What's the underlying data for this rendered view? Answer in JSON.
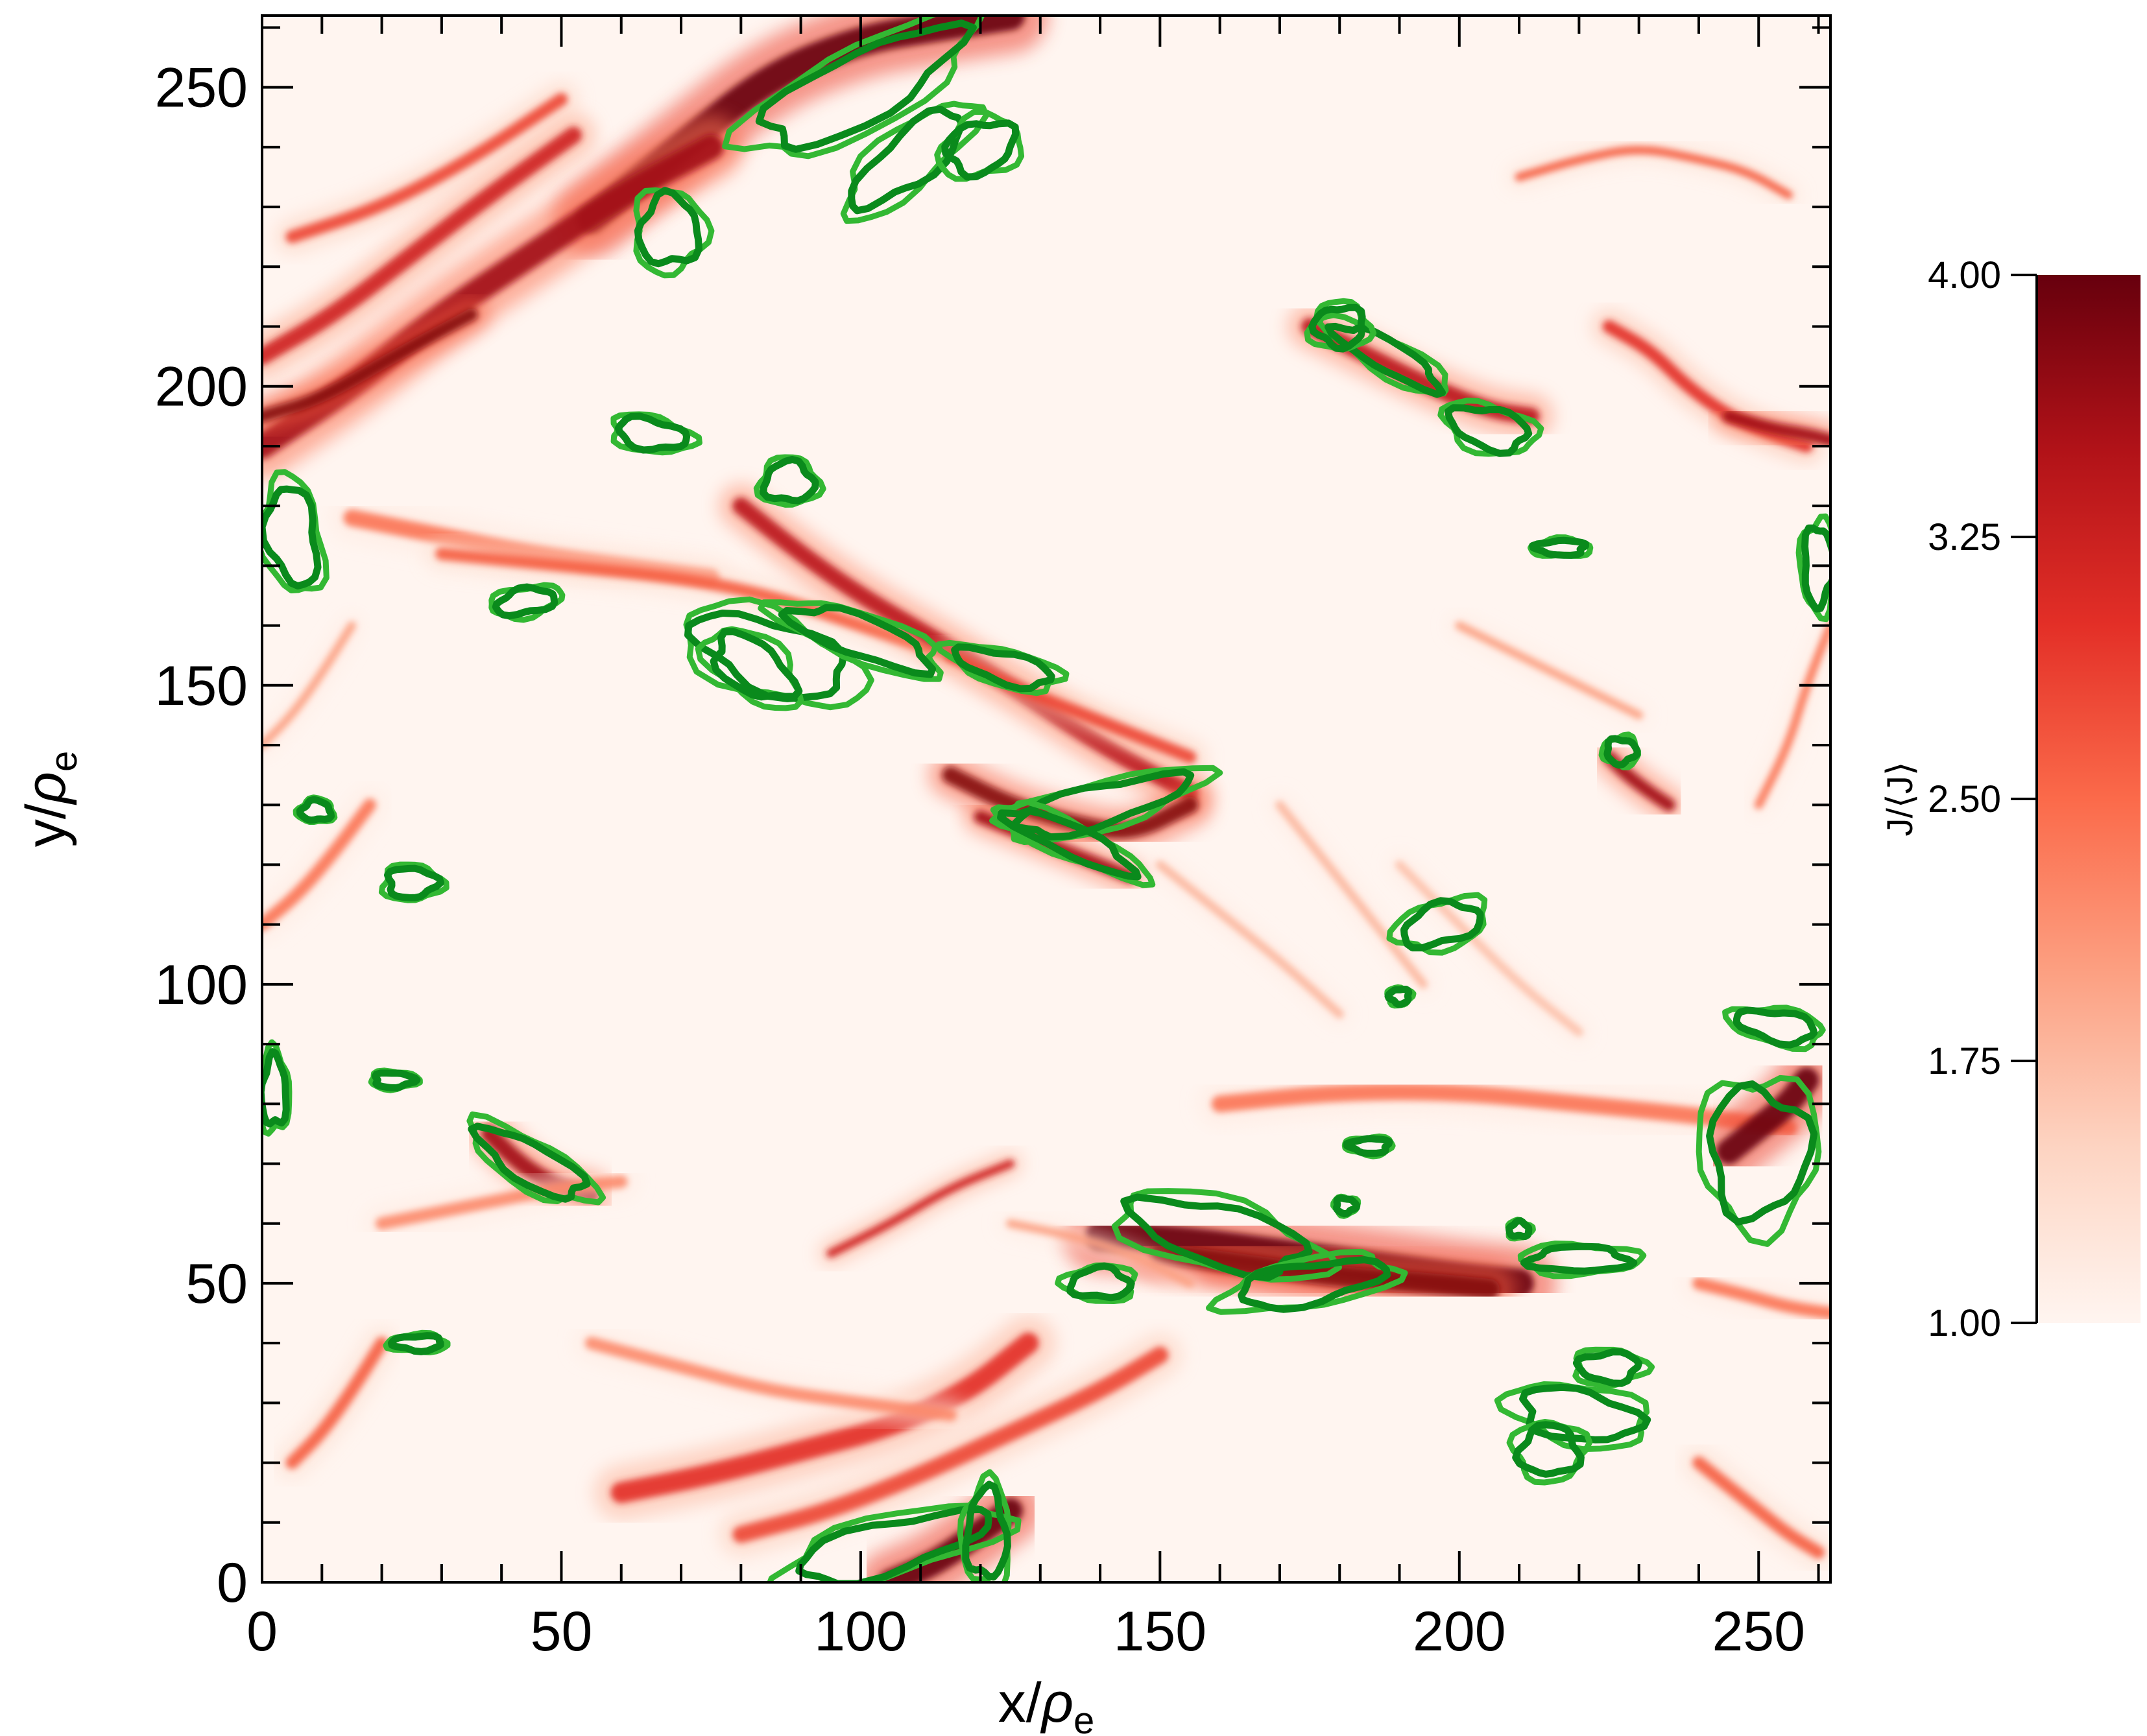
{
  "chart_data": {
    "type": "heatmap",
    "title": "",
    "xlabel": {
      "main": "x/",
      "greek": "ρ",
      "sub": "e"
    },
    "ylabel": {
      "main": "y/",
      "greek": "ρ",
      "sub": "e"
    },
    "xlim": [
      0,
      262
    ],
    "ylim": [
      0,
      262
    ],
    "x_ticks": [
      0,
      50,
      100,
      150,
      200,
      250
    ],
    "y_ticks": [
      0,
      50,
      100,
      150,
      200,
      250
    ],
    "x_minor_step": 10,
    "y_minor_step": 10,
    "colorbar": {
      "label": "J/⟨J⟩",
      "range": [
        1.0,
        4.0
      ],
      "ticks": [
        "1.00",
        "1.75",
        "2.50",
        "3.25",
        "4.00"
      ],
      "tick_values": [
        1.0,
        1.75,
        2.5,
        3.25,
        4.0
      ],
      "colormap": [
        "#fff5f0",
        "#fdd4c2",
        "#fca082",
        "#fb6a4a",
        "#e32f27",
        "#b11218",
        "#67000d"
      ]
    },
    "contour_colors": [
      "#0a8a1c",
      "#33b833"
    ],
    "intensity_streaks": [
      {
        "x": [
          55,
          70,
          85,
          100,
          112,
          125
        ],
        "y": [
          228,
          240,
          252,
          258,
          260,
          262
        ],
        "j": 4.0,
        "w": 7
      },
      {
        "x": [
          0,
          15,
          30,
          45,
          60,
          75
        ],
        "y": [
          190,
          200,
          212,
          222,
          232,
          240
        ],
        "j": 3.6,
        "w": 6
      },
      {
        "x": [
          0,
          12,
          25,
          38,
          52
        ],
        "y": [
          205,
          212,
          222,
          232,
          242
        ],
        "j": 3.2,
        "w": 4
      },
      {
        "x": [
          5,
          20,
          35,
          50
        ],
        "y": [
          225,
          230,
          238,
          248
        ],
        "j": 2.8,
        "w": 3
      },
      {
        "x": [
          0,
          10,
          22,
          35
        ],
        "y": [
          195,
          198,
          205,
          212
        ],
        "j": 3.8,
        "w": 3
      },
      {
        "x": [
          15,
          30,
          45,
          60,
          75
        ],
        "y": [
          178,
          175,
          172,
          170,
          168
        ],
        "j": 2.4,
        "w": 4
      },
      {
        "x": [
          30,
          50,
          70,
          85,
          100,
          115
        ],
        "y": [
          172,
          170,
          168,
          165,
          160,
          155
        ],
        "j": 2.6,
        "w": 3
      },
      {
        "x": [
          80,
          90,
          100,
          112,
          125,
          140,
          155
        ],
        "y": [
          180,
          172,
          165,
          158,
          150,
          140,
          132
        ],
        "j": 3.4,
        "w": 4
      },
      {
        "x": [
          115,
          125,
          135,
          145,
          155
        ],
        "y": [
          155,
          150,
          146,
          142,
          138
        ],
        "j": 2.8,
        "w": 3
      },
      {
        "x": [
          115,
          125,
          135,
          145,
          155
        ],
        "y": [
          135,
          130,
          127,
          125,
          130
        ],
        "j": 3.8,
        "w": 4
      },
      {
        "x": [
          120,
          130,
          140,
          145
        ],
        "y": [
          128,
          124,
          120,
          118
        ],
        "j": 3.6,
        "w": 3
      },
      {
        "x": [
          140,
          155,
          170,
          185,
          200,
          210
        ],
        "y": [
          58,
          57,
          55,
          53,
          51,
          50
        ],
        "j": 4.0,
        "w": 7
      },
      {
        "x": [
          150,
          165,
          180,
          195,
          205
        ],
        "y": [
          55,
          53,
          51,
          50,
          49
        ],
        "j": 3.8,
        "w": 5
      },
      {
        "x": [
          160,
          180,
          200,
          220,
          240,
          255
        ],
        "y": [
          80,
          82,
          82,
          80,
          78,
          76
        ],
        "j": 2.4,
        "w": 4
      },
      {
        "x": [
          245,
          250,
          255,
          258
        ],
        "y": [
          72,
          76,
          80,
          84
        ],
        "j": 4.0,
        "w": 6
      },
      {
        "x": [
          38,
          42,
          46,
          50,
          55
        ],
        "y": [
          75,
          71,
          68,
          66,
          65
        ],
        "j": 3.6,
        "w": 4
      },
      {
        "x": [
          20,
          30,
          40,
          50,
          60
        ],
        "y": [
          60,
          62,
          64,
          66,
          67
        ],
        "j": 2.2,
        "w": 3
      },
      {
        "x": [
          60,
          75,
          90,
          105,
          118,
          128
        ],
        "y": [
          15,
          18,
          22,
          26,
          32,
          40
        ],
        "j": 3.0,
        "w": 5
      },
      {
        "x": [
          80,
          95,
          110,
          125,
          140,
          150
        ],
        "y": [
          8,
          12,
          18,
          25,
          32,
          38
        ],
        "j": 2.8,
        "w": 4
      },
      {
        "x": [
          105,
          112,
          118,
          125
        ],
        "y": [
          0,
          3,
          7,
          12
        ],
        "j": 4.0,
        "w": 6
      },
      {
        "x": [
          5,
          10,
          15,
          20
        ],
        "y": [
          20,
          25,
          32,
          40
        ],
        "j": 2.6,
        "w": 3
      },
      {
        "x": [
          0,
          6,
          12,
          18
        ],
        "y": [
          110,
          115,
          122,
          130
        ],
        "j": 2.4,
        "w": 3
      },
      {
        "x": [
          0,
          5,
          10,
          15
        ],
        "y": [
          140,
          145,
          152,
          160
        ],
        "j": 2.0,
        "w": 2
      },
      {
        "x": [
          225,
          232,
          238,
          245,
          252,
          258
        ],
        "y": [
          210,
          206,
          200,
          195,
          192,
          190
        ],
        "j": 3.0,
        "w": 3
      },
      {
        "x": [
          245,
          252,
          258,
          262
        ],
        "y": [
          195,
          193,
          192,
          191
        ],
        "j": 3.6,
        "w": 3
      },
      {
        "x": [
          210,
          220,
          230,
          240,
          248,
          255
        ],
        "y": [
          235,
          238,
          240,
          238,
          236,
          232
        ],
        "j": 2.6,
        "w": 2
      },
      {
        "x": [
          175,
          185,
          195,
          205,
          212
        ],
        "y": [
          210,
          205,
          200,
          196,
          195
        ],
        "j": 3.4,
        "w": 4
      },
      {
        "x": [
          225,
          228,
          232,
          235
        ],
        "y": [
          138,
          135,
          132,
          130
        ],
        "j": 3.6,
        "w": 3
      },
      {
        "x": [
          200,
          210,
          220,
          230
        ],
        "y": [
          160,
          155,
          150,
          145
        ],
        "j": 2.0,
        "w": 2
      },
      {
        "x": [
          240,
          245,
          250,
          255,
          260
        ],
        "y": [
          20,
          16,
          12,
          8,
          5
        ],
        "j": 2.6,
        "w": 3
      },
      {
        "x": [
          240,
          248,
          255,
          262
        ],
        "y": [
          50,
          48,
          46,
          45
        ],
        "j": 2.4,
        "w": 3
      },
      {
        "x": [
          250,
          255,
          258,
          262
        ],
        "y": [
          130,
          140,
          150,
          160
        ],
        "j": 2.4,
        "w": 2
      },
      {
        "x": [
          150,
          160,
          170,
          180
        ],
        "y": [
          120,
          112,
          104,
          95
        ],
        "j": 1.8,
        "w": 2
      },
      {
        "x": [
          170,
          178,
          186,
          194
        ],
        "y": [
          130,
          120,
          110,
          100
        ],
        "j": 1.8,
        "w": 2
      },
      {
        "x": [
          190,
          200,
          210,
          220
        ],
        "y": [
          120,
          110,
          100,
          92
        ],
        "j": 1.7,
        "w": 2
      },
      {
        "x": [
          55,
          70,
          85,
          100,
          115
        ],
        "y": [
          40,
          36,
          32,
          30,
          28
        ],
        "j": 2.2,
        "w": 3
      },
      {
        "x": [
          95,
          105,
          115,
          125
        ],
        "y": [
          55,
          60,
          66,
          70
        ],
        "j": 3.2,
        "w": 2
      },
      {
        "x": [
          125,
          135,
          145,
          155
        ],
        "y": [
          60,
          58,
          55,
          50
        ],
        "j": 2.0,
        "w": 2
      }
    ],
    "contours": [
      {
        "cx": 100,
        "cy": 250,
        "rx": 22,
        "ry": 7,
        "rot": 28
      },
      {
        "cx": 68,
        "cy": 226,
        "rx": 6,
        "ry": 7,
        "rot": 0
      },
      {
        "cx": 108,
        "cy": 238,
        "rx": 14,
        "ry": 5,
        "rot": 40
      },
      {
        "cx": 120,
        "cy": 240,
        "rx": 7,
        "ry": 5,
        "rot": 20
      },
      {
        "cx": 188,
        "cy": 205,
        "rx": 12,
        "ry": 3,
        "rot": -30
      },
      {
        "cx": 205,
        "cy": 193,
        "rx": 8,
        "ry": 4,
        "rot": -15
      },
      {
        "cx": 65,
        "cy": 192,
        "rx": 7,
        "ry": 3,
        "rot": -10
      },
      {
        "cx": 88,
        "cy": 184,
        "rx": 5,
        "ry": 4,
        "rot": 0
      },
      {
        "cx": 5,
        "cy": 175,
        "rx": 5,
        "ry": 10,
        "rot": 10
      },
      {
        "cx": 260,
        "cy": 170,
        "rx": 3,
        "ry": 8,
        "rot": 0
      },
      {
        "cx": 44,
        "cy": 164,
        "rx": 6,
        "ry": 2.5,
        "rot": 10
      },
      {
        "cx": 85,
        "cy": 155,
        "rx": 16,
        "ry": 7,
        "rot": -20
      },
      {
        "cx": 82,
        "cy": 153,
        "rx": 9,
        "ry": 5,
        "rot": -35
      },
      {
        "cx": 100,
        "cy": 158,
        "rx": 15,
        "ry": 4,
        "rot": -20
      },
      {
        "cx": 124,
        "cy": 153,
        "rx": 10,
        "ry": 3,
        "rot": -15
      },
      {
        "cx": 140,
        "cy": 130,
        "rx": 18,
        "ry": 4,
        "rot": 15
      },
      {
        "cx": 135,
        "cy": 124,
        "rx": 14,
        "ry": 3,
        "rot": -25
      },
      {
        "cx": 217,
        "cy": 173,
        "rx": 5,
        "ry": 1.5,
        "rot": 0
      },
      {
        "cx": 227,
        "cy": 139,
        "rx": 3,
        "ry": 2.5,
        "rot": 0
      },
      {
        "cx": 197,
        "cy": 110,
        "rx": 8,
        "ry": 4,
        "rot": 15
      },
      {
        "cx": 190,
        "cy": 98,
        "rx": 2,
        "ry": 1.5,
        "rot": 0
      },
      {
        "cx": 25,
        "cy": 117,
        "rx": 5,
        "ry": 3,
        "rot": 0
      },
      {
        "cx": 9,
        "cy": 129,
        "rx": 3,
        "ry": 2,
        "rot": 0
      },
      {
        "cx": 253,
        "cy": 93,
        "rx": 8,
        "ry": 3,
        "rot": -10
      },
      {
        "cx": 250,
        "cy": 72,
        "rx": 10,
        "ry": 13,
        "rot": 0
      },
      {
        "cx": 220,
        "cy": 54,
        "rx": 10,
        "ry": 2.5,
        "rot": 0
      },
      {
        "cx": 160,
        "cy": 58,
        "rx": 18,
        "ry": 6,
        "rot": -15
      },
      {
        "cx": 175,
        "cy": 50,
        "rx": 15,
        "ry": 4,
        "rot": 10
      },
      {
        "cx": 140,
        "cy": 50,
        "rx": 6,
        "ry": 3,
        "rot": 0
      },
      {
        "cx": 45,
        "cy": 70,
        "rx": 12,
        "ry": 4,
        "rot": -30
      },
      {
        "cx": 22,
        "cy": 84,
        "rx": 4,
        "ry": 1.5,
        "rot": 0
      },
      {
        "cx": 2,
        "cy": 82,
        "rx": 2.5,
        "ry": 7,
        "rot": 0
      },
      {
        "cx": 26,
        "cy": 40,
        "rx": 5,
        "ry": 1.5,
        "rot": 0
      },
      {
        "cx": 220,
        "cy": 28,
        "rx": 12,
        "ry": 5,
        "rot": -10
      },
      {
        "cx": 215,
        "cy": 22,
        "rx": 6,
        "ry": 5,
        "rot": 0
      },
      {
        "cx": 225,
        "cy": 36,
        "rx": 6,
        "ry": 3,
        "rot": 0
      },
      {
        "cx": 105,
        "cy": 6,
        "rx": 20,
        "ry": 5,
        "rot": 15
      },
      {
        "cx": 121,
        "cy": 8,
        "rx": 4,
        "ry": 9,
        "rot": 0
      },
      {
        "cx": 185,
        "cy": 73,
        "rx": 4,
        "ry": 1.5,
        "rot": 0
      },
      {
        "cx": 181,
        "cy": 63,
        "rx": 2,
        "ry": 1.5,
        "rot": 0
      },
      {
        "cx": 210,
        "cy": 59,
        "rx": 2,
        "ry": 1.5,
        "rot": 0
      },
      {
        "cx": 180,
        "cy": 210,
        "rx": 5,
        "ry": 4,
        "rot": 0
      }
    ]
  }
}
